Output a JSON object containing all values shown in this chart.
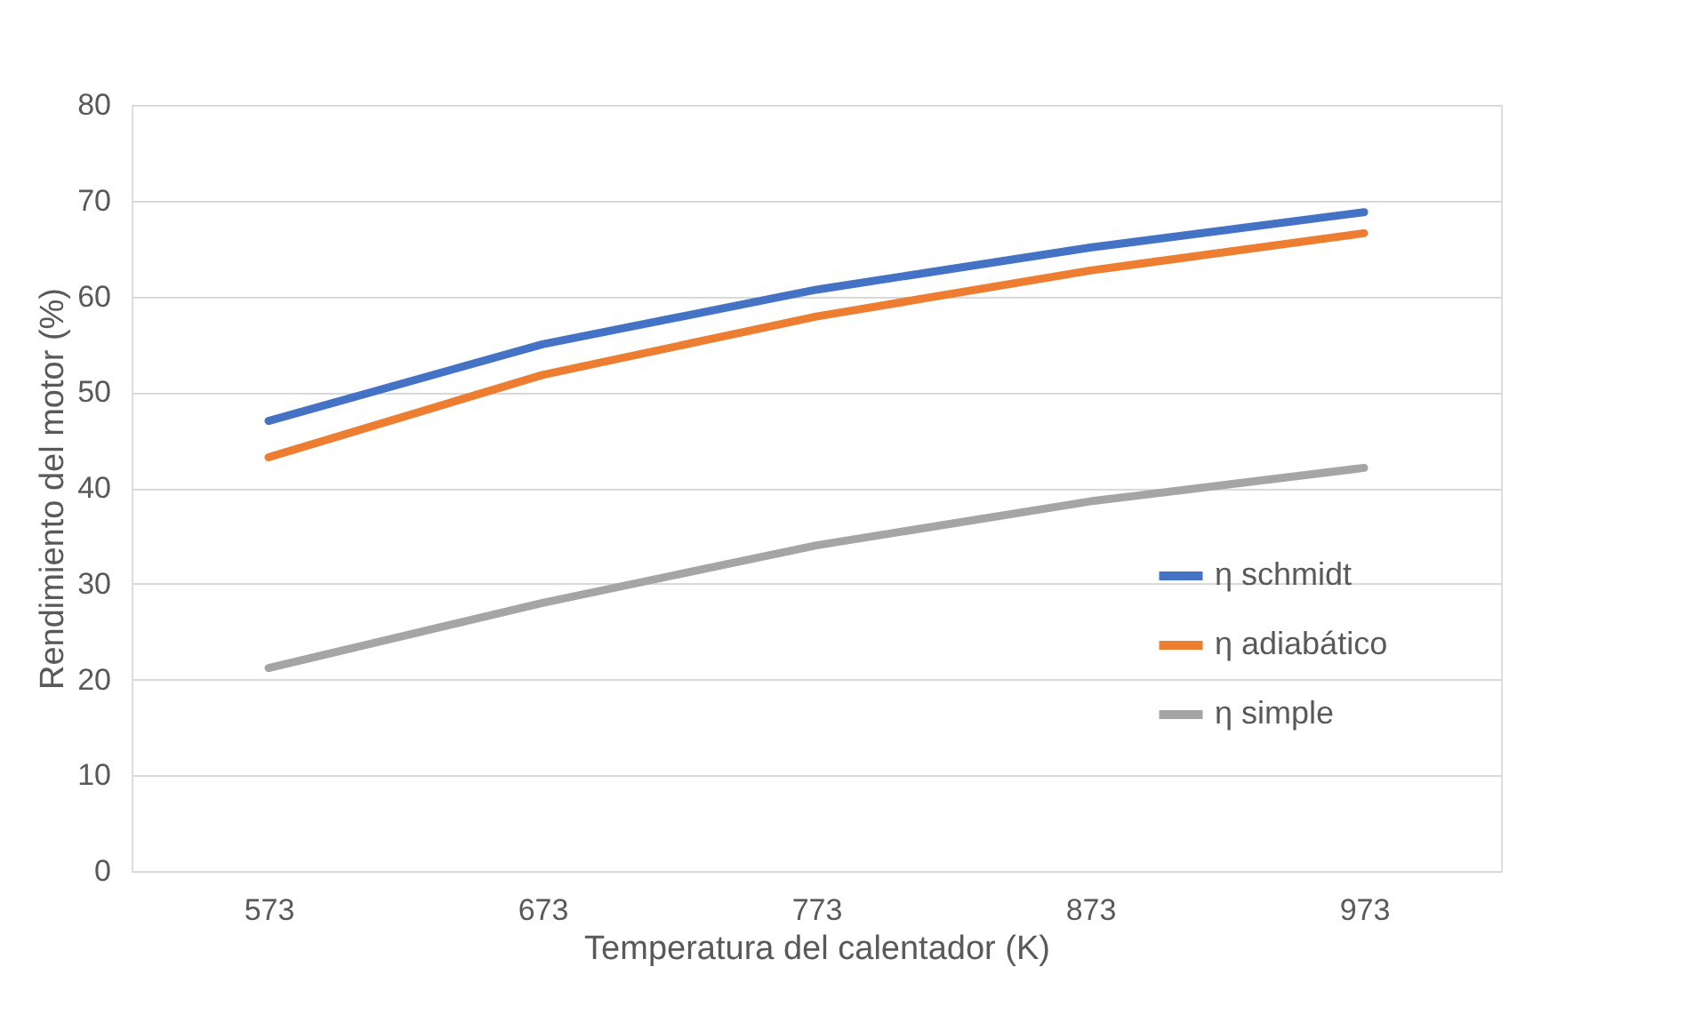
{
  "chart_data": {
    "type": "line",
    "xlabel": "Temperatura del calentador (K)",
    "ylabel": "Rendimiento del motor (%)",
    "categories": [
      "573",
      "673",
      "773",
      "873",
      "973"
    ],
    "series": [
      {
        "name": "η schmidt",
        "color": "#4472c4",
        "values": [
          47,
          55,
          60.7,
          65.1,
          68.8
        ]
      },
      {
        "name": "η adiabático",
        "color": "#ed7d31",
        "values": [
          43.2,
          51.8,
          57.9,
          62.7,
          66.6
        ]
      },
      {
        "name": "η simple",
        "color": "#a5a5a5",
        "values": [
          21.2,
          28,
          34,
          38.6,
          42.1
        ]
      }
    ],
    "ylim": [
      0,
      80
    ],
    "yticks": [
      0,
      10,
      20,
      30,
      40,
      50,
      60,
      70,
      80
    ],
    "grid": "y",
    "legend": "right",
    "marker": "none",
    "line_style": "solid"
  }
}
